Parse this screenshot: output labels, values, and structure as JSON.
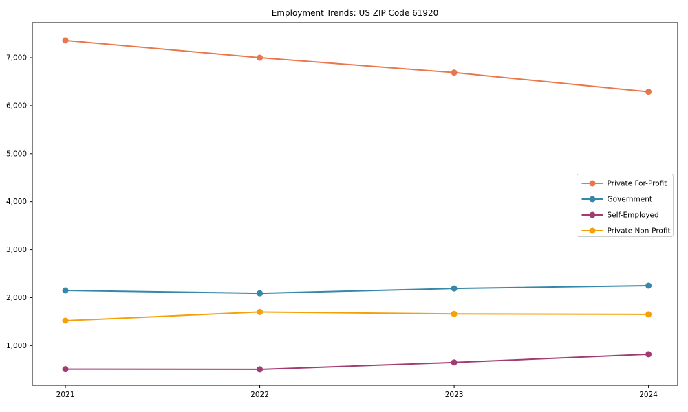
{
  "figure": {
    "title": "Employment Trends: US ZIP Code 61920"
  },
  "chart_data": {
    "type": "line",
    "title": "Employment Trends: US ZIP Code 61920",
    "xlabel": "",
    "ylabel": "",
    "x": [
      2021,
      2022,
      2023,
      2024
    ],
    "x_tick_labels": [
      "2021",
      "2022",
      "2023",
      "2024"
    ],
    "series": [
      {
        "name": "Private For-Profit",
        "color": "#E8774B",
        "values": [
          7360,
          7000,
          6690,
          6290
        ]
      },
      {
        "name": "Government",
        "color": "#3787A8",
        "values": [
          2150,
          2090,
          2190,
          2250
        ]
      },
      {
        "name": "Self-Employed",
        "color": "#A23B72",
        "values": [
          510,
          505,
          650,
          820
        ]
      },
      {
        "name": "Private Non-Profit",
        "color": "#F5A00B",
        "values": [
          1520,
          1700,
          1660,
          1650
        ]
      }
    ],
    "yticks": [
      1000,
      2000,
      3000,
      4000,
      5000,
      6000,
      7000
    ],
    "ytick_labels": [
      "1,000",
      "2,000",
      "3,000",
      "4,000",
      "5,000",
      "6,000",
      "7,000"
    ],
    "ylim": [
      175,
      7730
    ],
    "xlim": [
      2020.83,
      2024.15
    ],
    "grid": false,
    "marker": "circle",
    "legend_position": "center-right",
    "frame": true
  }
}
